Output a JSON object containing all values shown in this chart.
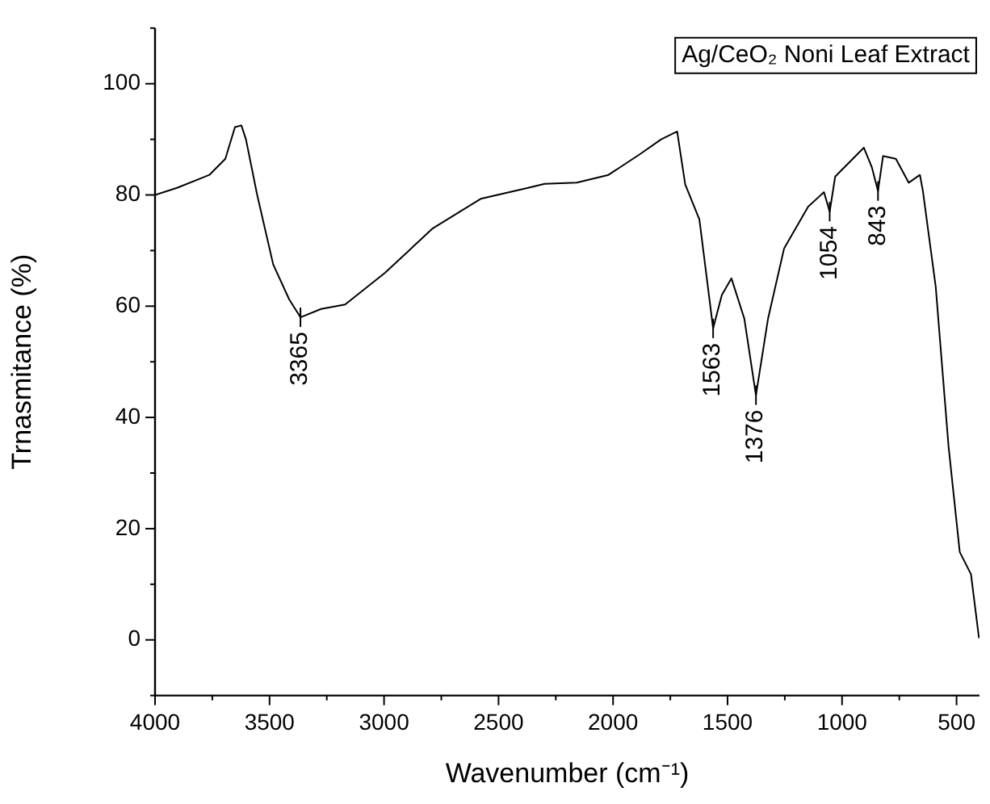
{
  "chart_data": {
    "type": "line",
    "title": "Ag/CeO₂ Noni Leaf Extract",
    "xlabel": "Wavenumber (cm⁻¹)",
    "ylabel": "Trnasmitance (%)",
    "x": [
      4000,
      3902,
      3763,
      3693,
      3651,
      3623,
      3603,
      3554,
      3484,
      3414,
      3365,
      3275,
      3170,
      2996,
      2787,
      2578,
      2368,
      2299,
      2159,
      2020,
      1880,
      1790,
      1720,
      1685,
      1623,
      1563,
      1525,
      1483,
      1427,
      1376,
      1323,
      1253,
      1148,
      1079,
      1054,
      1030,
      905,
      870,
      843,
      821,
      765,
      709,
      660,
      647,
      591,
      535,
      486,
      437,
      402
    ],
    "series": [
      {
        "color": "#000000",
        "values": [
          80,
          81.3,
          83.6,
          86.5,
          92.2,
          92.5,
          90,
          80,
          67.5,
          61.2,
          58,
          59.5,
          60.3,
          66,
          74,
          79.3,
          81.3,
          82,
          82.2,
          83.6,
          87.4,
          90,
          91.4,
          81.9,
          75.6,
          56,
          62,
          65,
          57.8,
          44,
          57.8,
          70.4,
          77.9,
          80.5,
          77,
          83.3,
          88.5,
          85,
          80.7,
          87,
          86.5,
          82.2,
          83.6,
          80.7,
          63.5,
          34.8,
          15.8,
          11.8,
          0.3
        ]
      }
    ],
    "xlim": [
      4000,
      400
    ],
    "ylim": [
      -10,
      110
    ],
    "xticks": [
      4000,
      {
        "value": 3750,
        "label": null
      },
      3500,
      {
        "value": 3250,
        "label": null
      },
      3000,
      {
        "value": 2750,
        "label": null
      },
      2500,
      {
        "value": 2250,
        "label": null
      },
      2000,
      {
        "value": 1750,
        "label": null
      },
      1500,
      {
        "value": 1250,
        "label": null
      },
      1000,
      {
        "value": 750,
        "label": null
      },
      500
    ],
    "yticks": [
      {
        "value": -10,
        "label": null
      },
      0,
      {
        "value": 10,
        "label": null
      },
      20,
      {
        "value": 30,
        "label": null
      },
      40,
      {
        "value": 50,
        "label": null
      },
      60,
      {
        "value": 70,
        "label": null
      },
      80,
      {
        "value": 90,
        "label": null
      },
      100,
      {
        "value": 110,
        "label": null
      }
    ],
    "annotations": [
      {
        "text": "3365",
        "x": 3365,
        "y": 58
      },
      {
        "text": "1563",
        "x": 1563,
        "y": 56
      },
      {
        "text": "1376",
        "x": 1376,
        "y": 44
      },
      {
        "text": "1054",
        "x": 1054,
        "y": 77
      },
      {
        "text": "843",
        "x": 843,
        "y": 80.7
      }
    ],
    "marker": "none",
    "line_style": "solid",
    "grid": false,
    "legend": false
  }
}
